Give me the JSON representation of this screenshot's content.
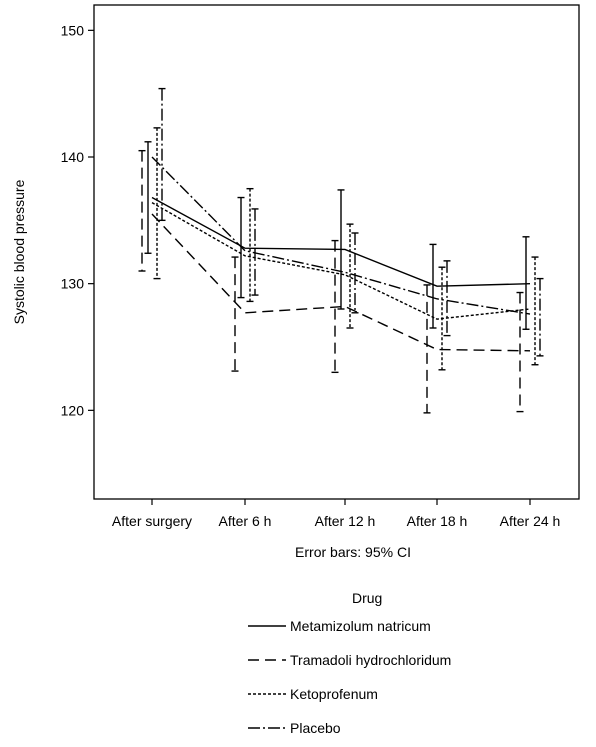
{
  "chart_data": {
    "type": "line",
    "categories": [
      "After surgery",
      "After 6 h",
      "After 12 h",
      "After 18 h",
      "After 24 h"
    ],
    "ylabel": "Systolic blood pressure",
    "xlabel": "",
    "note": "Error bars: 95% CI",
    "ylim": [
      113,
      152
    ],
    "yticks": [
      120,
      130,
      140,
      150
    ],
    "grid": false,
    "legend": {
      "title": "Drug",
      "placement": "bottom"
    },
    "series": [
      {
        "name": "Metamizolum natricum",
        "dash": "solid",
        "values": [
          136.8,
          132.8,
          132.7,
          129.8,
          130.0
        ],
        "ci_low": [
          132.4,
          128.9,
          128.0,
          126.5,
          126.4
        ],
        "ci_high": [
          141.2,
          136.8,
          137.4,
          133.1,
          133.7
        ]
      },
      {
        "name": "Tramadoli hydrochloridum",
        "dash": "dashed",
        "values": [
          135.5,
          127.7,
          128.2,
          124.8,
          124.7
        ],
        "ci_low": [
          131.0,
          123.1,
          123.0,
          119.8,
          119.9
        ],
        "ci_high": [
          140.5,
          132.1,
          133.4,
          129.9,
          129.3
        ]
      },
      {
        "name": "Ketoprofenum",
        "dash": "dotted",
        "values": [
          136.4,
          132.2,
          130.7,
          127.2,
          128.0
        ],
        "ci_low": [
          130.4,
          128.6,
          126.5,
          123.2,
          123.6
        ],
        "ci_high": [
          142.3,
          137.5,
          134.7,
          131.3,
          132.1
        ]
      },
      {
        "name": "Placebo",
        "dash": "dashdot",
        "values": [
          140.0,
          132.6,
          130.9,
          128.8,
          127.6
        ],
        "ci_low": [
          135.0,
          129.1,
          127.7,
          125.9,
          124.3
        ],
        "ci_high": [
          145.4,
          135.9,
          134.0,
          131.8,
          130.4
        ]
      }
    ]
  }
}
